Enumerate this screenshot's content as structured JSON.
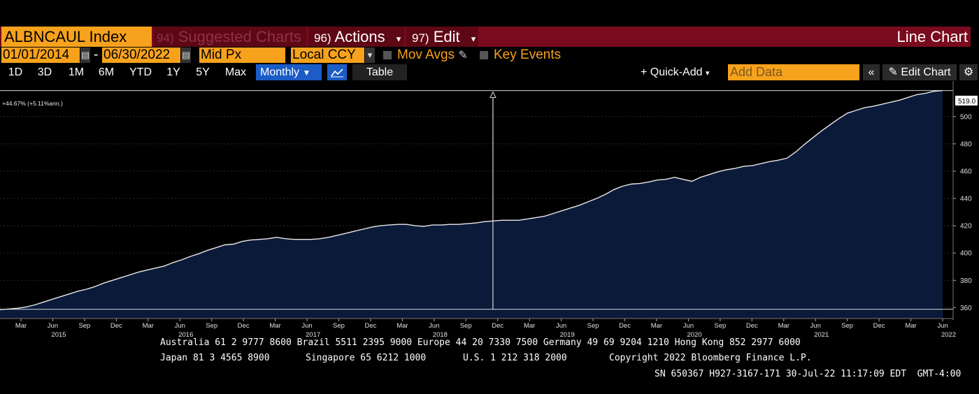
{
  "toolbar": {
    "ticker": "ALBNCAUL Index",
    "suggested_num": "94)",
    "suggested_label": "Suggested Charts",
    "actions_num": "96)",
    "actions_label": "Actions",
    "edit_num": "97)",
    "edit_label": "Edit",
    "chart_type": "Line Chart"
  },
  "params": {
    "start_date": "01/01/2014",
    "end_date": "06/30/2022",
    "field": "Mid Px",
    "currency": "Local CCY",
    "mov_avgs": "Mov Avgs",
    "key_events": "Key Events"
  },
  "range_tabs": [
    "1D",
    "3D",
    "1M",
    "6M",
    "YTD",
    "1Y",
    "5Y",
    "Max"
  ],
  "range_bar": {
    "period": "Monthly",
    "table": "Table",
    "quick_add": "Quick-Add",
    "add_data_placeholder": "Add Data",
    "edit_chart": "Edit Chart"
  },
  "colors": {
    "orange": "#f7a21c",
    "maroon": "#7a0a1e",
    "area_fill": "#0c1a3a",
    "blue": "#1b5cc7"
  },
  "chart_data": {
    "type": "area",
    "annotation": "+44.67% (+5.11%ann.)",
    "last_value_label": "519.0",
    "y_ticks": [
      360,
      380,
      400,
      420,
      440,
      460,
      480,
      500
    ],
    "ylim": [
      352,
      526
    ],
    "x_month_labels": [
      "Mar",
      "Jun",
      "Sep",
      "Dec",
      "Mar",
      "Jun",
      "Sep",
      "Dec",
      "Mar",
      "Jun",
      "Sep",
      "Dec",
      "Mar",
      "Jun",
      "Sep",
      "Dec",
      "Mar",
      "Jun",
      "Sep",
      "Dec",
      "Mar",
      "Jun",
      "Sep",
      "Dec",
      "Mar",
      "Jun",
      "Sep",
      "Dec",
      "Mar",
      "Jun"
    ],
    "x_year_labels": [
      "2015",
      "2016",
      "2017",
      "2018",
      "2019",
      "2020",
      "2021",
      "2022"
    ],
    "series": [
      {
        "values": [
          358.5,
          359,
          359.5,
          360.5,
          362,
          364,
          366,
          368,
          370,
          372,
          373.5,
          375.5,
          378,
          380,
          382,
          384,
          386,
          387.5,
          389,
          390.5,
          393,
          395,
          397.5,
          399.5,
          402,
          404,
          406,
          406.5,
          408.5,
          409.5,
          410,
          410.5,
          411.5,
          410.5,
          410,
          410,
          410,
          410.5,
          411.5,
          413,
          414.5,
          416,
          417.5,
          419,
          420,
          420.5,
          421,
          421,
          420,
          419.5,
          420.5,
          420.5,
          421,
          421,
          421.5,
          422,
          423,
          423.5,
          424,
          424,
          424,
          425,
          426,
          427,
          429,
          431,
          433,
          435,
          437.5,
          440,
          443,
          446.5,
          449,
          450.5,
          451,
          452,
          453.5,
          454,
          455.5,
          454,
          452.5,
          455.5,
          457.5,
          459.5,
          461,
          462,
          463.5,
          464,
          465.5,
          467,
          468,
          469.5,
          474,
          479.5,
          484.5,
          489.5,
          494,
          498.5,
          502.5,
          504.5,
          506.5,
          507.5,
          509,
          510.5,
          512,
          514,
          516,
          517,
          518.5,
          519
        ]
      }
    ],
    "start_reference": 358.8,
    "marker_index": 57
  },
  "footer": {
    "line1": "Australia 61 2 9777 8600 Brazil 5511 2395 9000 Europe 44 20 7330 7500 Germany 49 69 9204 1210 Hong Kong 852 2977 6000",
    "line2a": "Japan 81 3 4565 8900",
    "line2b": "Singapore 65 6212 1000",
    "line2c": "U.S. 1 212 318 2000",
    "line2d": "Copyright 2022 Bloomberg Finance L.P.",
    "line3": "SN 650367 H927-3167-171 30-Jul-22 11:17:09 EDT  GMT-4:00"
  }
}
